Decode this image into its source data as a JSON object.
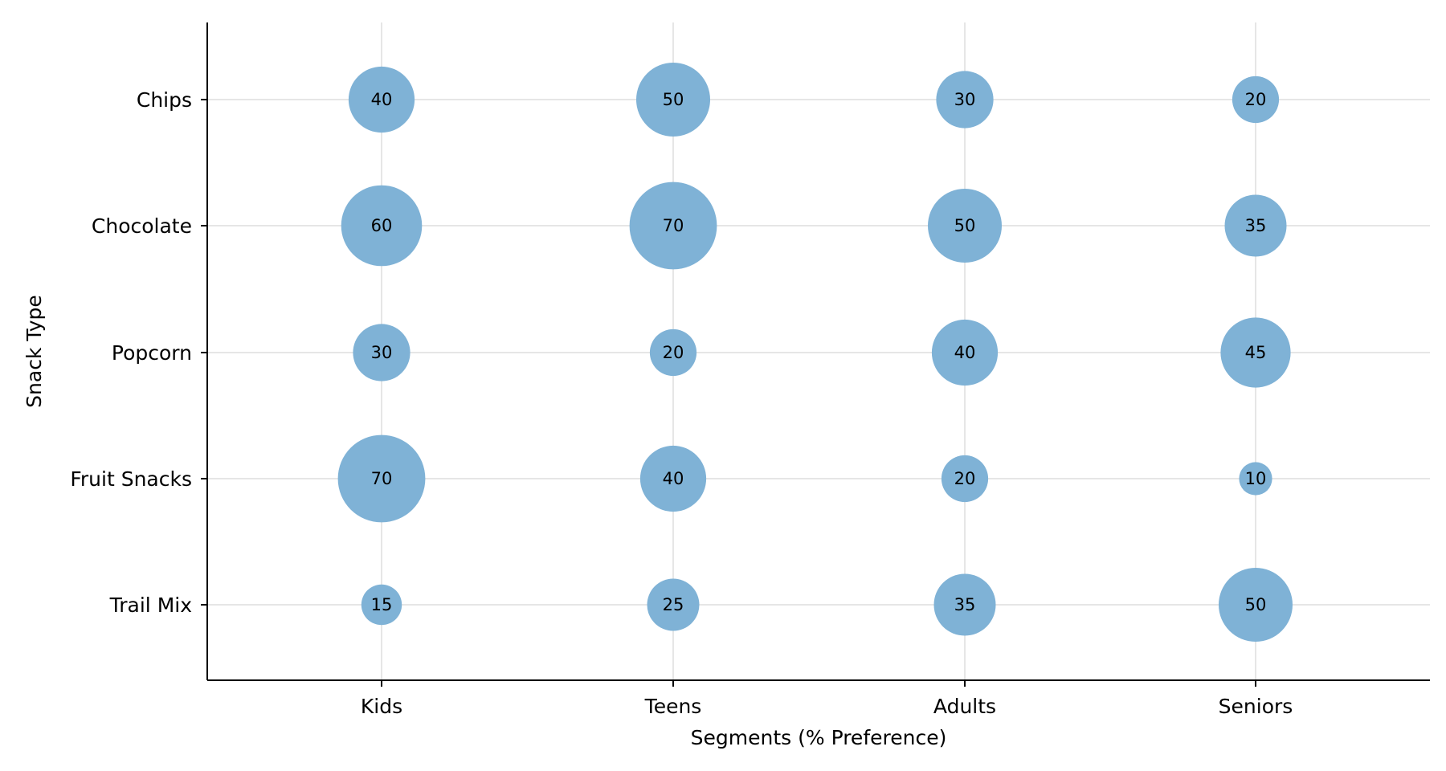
{
  "chart_data": {
    "type": "scatter",
    "subtype": "bubble",
    "title": "",
    "xlabel": "Segments (% Preference)",
    "ylabel": "Snack Type",
    "x_categories": [
      "Kids",
      "Teens",
      "Adults",
      "Seniors"
    ],
    "y_categories": [
      "Chips",
      "Chocolate",
      "Popcorn",
      "Fruit Snacks",
      "Trail Mix"
    ],
    "values": [
      [
        40,
        50,
        30,
        20
      ],
      [
        60,
        70,
        50,
        35
      ],
      [
        30,
        20,
        40,
        45
      ],
      [
        70,
        40,
        20,
        10
      ],
      [
        15,
        25,
        35,
        50
      ]
    ],
    "grid": true,
    "legend": "none",
    "colors": {
      "bubble": "#7fb2d6",
      "grid": "#e6e6e6",
      "axis": "#000000"
    }
  }
}
